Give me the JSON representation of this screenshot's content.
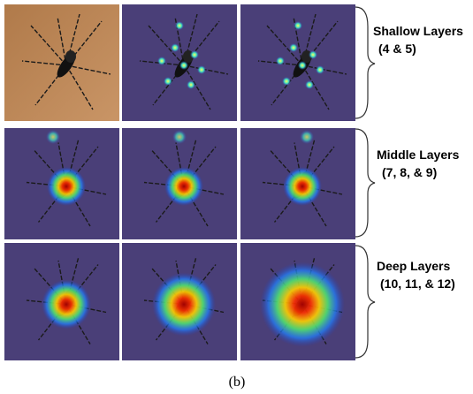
{
  "rows": [
    {
      "label": "Shallow Layers",
      "sublabel": "(4 & 5)"
    },
    {
      "label": "Middle Layers",
      "sublabel": "(7, 8, & 9)"
    },
    {
      "label": "Deep Layers",
      "sublabel": "(10, 11, & 12)"
    }
  ],
  "caption": "(b)"
}
